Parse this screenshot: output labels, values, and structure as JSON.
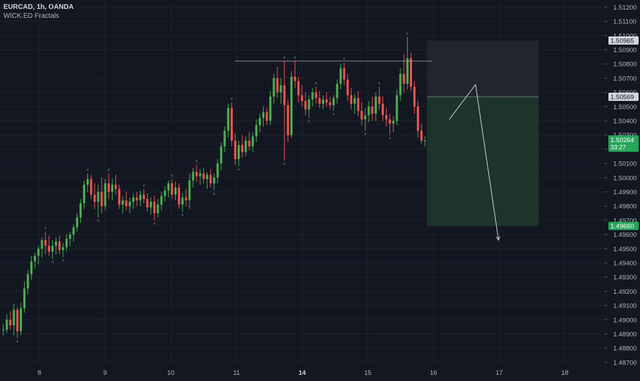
{
  "header": {
    "symbol": "EURCAD, 1h, OANDA",
    "indicator": "WICK.ED Fractals"
  },
  "colors": {
    "background": "#131722",
    "up": "#4caf50",
    "down": "#ef5350",
    "grid": "#1e222d",
    "axis_text": "#b2b5be",
    "target_zone": "#1e3a2a",
    "stop_zone": "#22262f",
    "price_label_current": "#26a65b",
    "price_label_target": "#26a65b",
    "price_label_stop": "#d1d4dc",
    "price_label_entry": "#d1d4dc"
  },
  "chart_data": {
    "type": "candlestick",
    "x_tick_labels": [
      "8",
      "9",
      "10",
      "11",
      "14",
      "15",
      "16",
      "17",
      "18"
    ],
    "x_ticks": [
      8,
      9,
      10,
      11,
      12,
      13,
      14,
      15,
      16
    ],
    "y_ticks": [
      1.487,
      1.488,
      1.489,
      1.49,
      1.491,
      1.492,
      1.493,
      1.494,
      1.495,
      1.496,
      1.497,
      1.498,
      1.499,
      1.5,
      1.501,
      1.502,
      1.503,
      1.504,
      1.505,
      1.506,
      1.507,
      1.508,
      1.509,
      1.51,
      1.511,
      1.512
    ],
    "y_tick_labels": [
      "1.48700",
      "1.48800",
      "1.48900",
      "1.49000",
      "1.49100",
      "1.49200",
      "1.49300",
      "1.49400",
      "1.49500",
      "1.49600",
      "1.49700",
      "1.49800",
      "1.49900",
      "1.50000",
      "1.50100",
      "1.50200",
      "1.50300",
      "1.50400",
      "1.50500",
      "1.50600",
      "1.50700",
      "1.50800",
      "1.50900",
      "1.51000",
      "1.51100",
      "1.51200"
    ],
    "ylim": [
      1.4868,
      1.5125
    ],
    "xlim": [
      7.4,
      16.6
    ],
    "price_labels": {
      "stop": {
        "value": 1.50965,
        "text": "1.50965"
      },
      "entry": {
        "value": 1.50569,
        "text": "1.50569"
      },
      "current": {
        "value": 1.50264,
        "text": "1.50264",
        "countdown": "33:27"
      },
      "target": {
        "value": 1.4966,
        "text": "1.49660"
      }
    },
    "position": {
      "type": "short",
      "x_start": 13.9,
      "x_end": 15.6,
      "stop": 1.50965,
      "entry": 1.50569,
      "target": 1.4966
    },
    "resistance_line": {
      "x_start": 10.98,
      "x_end": 13.98,
      "value": 1.5082
    },
    "projection_path": [
      {
        "x": 14.24,
        "y": 1.5041
      },
      {
        "x": 14.64,
        "y": 1.50655
      },
      {
        "x": 14.99,
        "y": 1.4956
      }
    ],
    "candles": [
      [
        1.4893,
        1.4897,
        1.4889,
        1.4893
      ],
      [
        1.4893,
        1.4904,
        1.4891,
        1.49
      ],
      [
        1.49,
        1.4906,
        1.4893,
        1.4896
      ],
      [
        1.4896,
        1.4911,
        1.4889,
        1.4907
      ],
      [
        1.4907,
        1.4909,
        1.4887,
        1.4892
      ],
      [
        1.4892,
        1.4912,
        1.4889,
        1.4908
      ],
      [
        1.4908,
        1.4927,
        1.4905,
        1.4922
      ],
      [
        1.4922,
        1.4935,
        1.4918,
        1.4932
      ],
      [
        1.4932,
        1.4945,
        1.4928,
        1.4941
      ],
      [
        1.4941,
        1.4947,
        1.4936,
        1.4945
      ],
      [
        1.4945,
        1.4952,
        1.4939,
        1.495
      ],
      [
        1.495,
        1.4958,
        1.4944,
        1.4956
      ],
      [
        1.4956,
        1.4962,
        1.4946,
        1.4952
      ],
      [
        1.4952,
        1.4959,
        1.4945,
        1.4948
      ],
      [
        1.4948,
        1.4956,
        1.4943,
        1.4952
      ],
      [
        1.4952,
        1.4958,
        1.4946,
        1.4955
      ],
      [
        1.4955,
        1.4959,
        1.4946,
        1.4949
      ],
      [
        1.4949,
        1.4954,
        1.4944,
        1.4951
      ],
      [
        1.4951,
        1.496,
        1.4948,
        1.4957
      ],
      [
        1.4957,
        1.4962,
        1.4952,
        1.496
      ],
      [
        1.496,
        1.4967,
        1.4955,
        1.4965
      ],
      [
        1.4965,
        1.4975,
        1.4962,
        1.4972
      ],
      [
        1.4972,
        1.4985,
        1.4968,
        1.4982
      ],
      [
        1.4982,
        1.4998,
        1.4978,
        1.4995
      ],
      [
        1.4995,
        1.5003,
        1.499,
        1.4999
      ],
      [
        1.4999,
        1.5002,
        1.4985,
        1.4988
      ],
      [
        1.4988,
        1.4996,
        1.4978,
        1.4983
      ],
      [
        1.4983,
        1.4995,
        1.4972,
        1.499
      ],
      [
        1.499,
        1.5,
        1.4975,
        1.498
      ],
      [
        1.498,
        1.4999,
        1.4977,
        1.4996
      ],
      [
        1.4996,
        1.5003,
        1.4985,
        1.499
      ],
      [
        1.499,
        1.4999,
        1.4984,
        1.4995
      ],
      [
        1.4995,
        1.5002,
        1.4988,
        1.4992
      ],
      [
        1.4992,
        1.4995,
        1.4978,
        1.4981
      ],
      [
        1.4981,
        1.4987,
        1.4975,
        1.4984
      ],
      [
        1.4984,
        1.499,
        1.4977,
        1.498
      ],
      [
        1.498,
        1.4986,
        1.4975,
        1.4983
      ],
      [
        1.4983,
        1.4989,
        1.4978,
        1.4986
      ],
      [
        1.4986,
        1.499,
        1.498,
        1.4984
      ],
      [
        1.4984,
        1.4991,
        1.498,
        1.4988
      ],
      [
        1.4988,
        1.4992,
        1.4982,
        1.4985
      ],
      [
        1.4985,
        1.4989,
        1.4976,
        1.4979
      ],
      [
        1.4979,
        1.4986,
        1.4974,
        1.4983
      ],
      [
        1.4983,
        1.4987,
        1.497,
        1.4975
      ],
      [
        1.4975,
        1.4985,
        1.4972,
        1.4981
      ],
      [
        1.4981,
        1.499,
        1.4977,
        1.4987
      ],
      [
        1.4987,
        1.4994,
        1.4983,
        1.4991
      ],
      [
        1.4991,
        1.4998,
        1.4986,
        1.4996
      ],
      [
        1.4996,
        1.4999,
        1.4985,
        1.4988
      ],
      [
        1.4988,
        1.4997,
        1.4984,
        1.4993
      ],
      [
        1.4993,
        1.4996,
        1.4978,
        1.4981
      ],
      [
        1.4981,
        1.4989,
        1.4976,
        1.4986
      ],
      [
        1.4986,
        1.4992,
        1.498,
        1.4984
      ],
      [
        1.4984,
        1.5003,
        1.4978,
        1.4998
      ],
      [
        1.4998,
        1.5007,
        1.4993,
        1.5004
      ],
      [
        1.5004,
        1.5009,
        1.4997,
        1.5001
      ],
      [
        1.5001,
        1.5006,
        1.4995,
        1.5003
      ],
      [
        1.5003,
        1.5007,
        1.4996,
        1.4999
      ],
      [
        1.4999,
        1.5004,
        1.4992,
        1.5002
      ],
      [
        1.5002,
        1.5006,
        1.4993,
        1.4996
      ],
      [
        1.4996,
        1.5003,
        1.4991,
        1.5
      ],
      [
        1.5,
        1.5013,
        1.4996,
        1.501
      ],
      [
        1.501,
        1.5025,
        1.5005,
        1.5022
      ],
      [
        1.5022,
        1.5036,
        1.5018,
        1.5033
      ],
      [
        1.5033,
        1.5052,
        1.5028,
        1.5049
      ],
      [
        1.5049,
        1.5053,
        1.5022,
        1.5026
      ],
      [
        1.5026,
        1.5031,
        1.5009,
        1.5013
      ],
      [
        1.5013,
        1.5026,
        1.5008,
        1.5023
      ],
      [
        1.5023,
        1.503,
        1.5014,
        1.5018
      ],
      [
        1.5018,
        1.5029,
        1.5015,
        1.5026
      ],
      [
        1.5026,
        1.5032,
        1.5019,
        1.5022
      ],
      [
        1.5022,
        1.5032,
        1.5018,
        1.5029
      ],
      [
        1.5029,
        1.5041,
        1.5025,
        1.5037
      ],
      [
        1.5037,
        1.5045,
        1.5032,
        1.5042
      ],
      [
        1.5042,
        1.505,
        1.5036,
        1.5046
      ],
      [
        1.5046,
        1.5049,
        1.5037,
        1.504
      ],
      [
        1.504,
        1.5061,
        1.5037,
        1.5057
      ],
      [
        1.5057,
        1.5073,
        1.5052,
        1.507
      ],
      [
        1.507,
        1.5078,
        1.5056,
        1.506
      ],
      [
        1.506,
        1.507,
        1.5052,
        1.5065
      ],
      [
        1.5065,
        1.5082,
        1.5012,
        1.5051
      ],
      [
        1.5051,
        1.5055,
        1.5025,
        1.503
      ],
      [
        1.503,
        1.5075,
        1.5028,
        1.5071
      ],
      [
        1.5071,
        1.5082,
        1.5063,
        1.5068
      ],
      [
        1.5068,
        1.5071,
        1.5053,
        1.5058
      ],
      [
        1.5058,
        1.5065,
        1.505,
        1.5054
      ],
      [
        1.5054,
        1.506,
        1.5044,
        1.5048
      ],
      [
        1.5048,
        1.5058,
        1.5042,
        1.5055
      ],
      [
        1.5055,
        1.5063,
        1.505,
        1.506
      ],
      [
        1.506,
        1.5064,
        1.5052,
        1.5056
      ],
      [
        1.5056,
        1.5061,
        1.5049,
        1.5052
      ],
      [
        1.5052,
        1.5058,
        1.5048,
        1.5055
      ],
      [
        1.5055,
        1.506,
        1.505,
        1.5053
      ],
      [
        1.5053,
        1.5057,
        1.5048,
        1.5051
      ],
      [
        1.5051,
        1.5058,
        1.5047,
        1.5056
      ],
      [
        1.5056,
        1.5069,
        1.5052,
        1.5066
      ],
      [
        1.5066,
        1.508,
        1.5062,
        1.5077
      ],
      [
        1.5077,
        1.5081,
        1.5065,
        1.5069
      ],
      [
        1.5069,
        1.5073,
        1.5054,
        1.5058
      ],
      [
        1.5058,
        1.5063,
        1.5048,
        1.5052
      ],
      [
        1.5052,
        1.5059,
        1.5045,
        1.5056
      ],
      [
        1.5056,
        1.5061,
        1.5043,
        1.5047
      ],
      [
        1.5047,
        1.5053,
        1.5037,
        1.5041
      ],
      [
        1.5041,
        1.5049,
        1.5033,
        1.5044
      ],
      [
        1.5044,
        1.5054,
        1.5039,
        1.505
      ],
      [
        1.505,
        1.5057,
        1.504,
        1.5045
      ],
      [
        1.5045,
        1.506,
        1.504,
        1.5057
      ],
      [
        1.5057,
        1.5064,
        1.5048,
        1.5052
      ],
      [
        1.5052,
        1.5057,
        1.504,
        1.5044
      ],
      [
        1.5044,
        1.5049,
        1.5036,
        1.5041
      ],
      [
        1.5041,
        1.5045,
        1.503,
        1.5038
      ],
      [
        1.5038,
        1.5043,
        1.5032,
        1.504
      ],
      [
        1.504,
        1.5062,
        1.5037,
        1.5058
      ],
      [
        1.5058,
        1.5077,
        1.5054,
        1.5073
      ],
      [
        1.5073,
        1.5087,
        1.506,
        1.5066
      ],
      [
        1.5066,
        1.5099,
        1.5062,
        1.5084
      ],
      [
        1.5084,
        1.5088,
        1.5061,
        1.5064
      ],
      [
        1.5064,
        1.5068,
        1.5045,
        1.505
      ],
      [
        1.505,
        1.5054,
        1.5028,
        1.5033
      ],
      [
        1.5033,
        1.5038,
        1.5024,
        1.5026
      ],
      [
        1.5026,
        1.5029,
        1.5022,
        1.5026
      ]
    ]
  }
}
